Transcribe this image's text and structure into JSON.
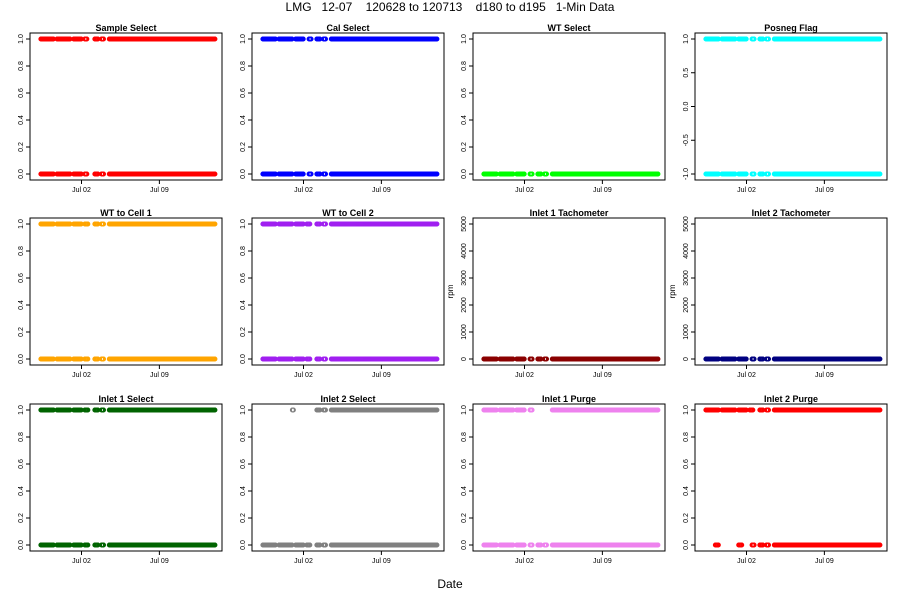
{
  "title": "LMG   12-07    120628 to 120713    d180 to d195   1-Min Data",
  "xlabel": "Date",
  "chart_data": [
    {
      "type": "scatter",
      "title": "Sample Select",
      "color": "#ff0000",
      "ylim": [
        0,
        1
      ],
      "yticks": [
        "0.0",
        "0.2",
        "0.4",
        "0.6",
        "0.8",
        "1.0"
      ],
      "ylabel": "",
      "xticks": [
        "Jul 02",
        "Jul 09"
      ],
      "x_range_days": [
        0,
        16
      ],
      "series": [
        {
          "name": "high",
          "y": 1,
          "segments": [
            [
              0.35,
              1.5
            ],
            [
              1.8,
              3.0
            ],
            [
              3.3,
              4.0
            ],
            [
              4.3,
              4.5
            ],
            [
              5.2,
              5.5
            ],
            [
              5.8,
              6.0
            ],
            [
              6.5,
              16
            ]
          ]
        },
        {
          "name": "low",
          "y": 0,
          "segments": [
            [
              0.35,
              1.5
            ],
            [
              1.8,
              3.0
            ],
            [
              3.3,
              4.0
            ],
            [
              4.3,
              4.5
            ],
            [
              5.2,
              5.5
            ],
            [
              5.8,
              6.0
            ],
            [
              6.5,
              16
            ]
          ]
        }
      ]
    },
    {
      "type": "scatter",
      "title": "Cal Select",
      "color": "#0000ff",
      "ylim": [
        0,
        1
      ],
      "yticks": [
        "0.0",
        "0.2",
        "0.4",
        "0.6",
        "0.8",
        "1.0"
      ],
      "ylabel": "",
      "xticks": [
        "Jul 02",
        "Jul 09"
      ],
      "x_range_days": [
        0,
        16
      ],
      "series": [
        {
          "name": "high",
          "y": 1,
          "segments": [
            [
              0.35,
              1.5
            ],
            [
              1.8,
              3.0
            ],
            [
              3.3,
              4.0
            ],
            [
              4.5,
              4.7
            ],
            [
              5.2,
              5.5
            ],
            [
              5.8,
              6.0
            ],
            [
              6.5,
              16
            ]
          ]
        },
        {
          "name": "low",
          "y": 0,
          "segments": [
            [
              0.35,
              1.5
            ],
            [
              1.8,
              3.0
            ],
            [
              3.3,
              4.0
            ],
            [
              4.5,
              4.7
            ],
            [
              5.2,
              5.5
            ],
            [
              5.8,
              6.0
            ],
            [
              6.5,
              16
            ]
          ]
        }
      ]
    },
    {
      "type": "scatter",
      "title": "WT Select",
      "color": "#00ff00",
      "ylim": [
        0,
        1
      ],
      "yticks": [
        "0.0",
        "0.2",
        "0.4",
        "0.6",
        "0.8",
        "1.0"
      ],
      "ylabel": "",
      "xticks": [
        "Jul 02",
        "Jul 09"
      ],
      "x_range_days": [
        0,
        16
      ],
      "series": [
        {
          "name": "low",
          "y": 0,
          "segments": [
            [
              0.35,
              1.5
            ],
            [
              1.8,
              3.0
            ],
            [
              3.3,
              4.0
            ],
            [
              4.5,
              4.7
            ],
            [
              5.2,
              5.5
            ],
            [
              5.8,
              6.0
            ],
            [
              6.5,
              16
            ]
          ]
        }
      ]
    },
    {
      "type": "scatter",
      "title": "Posneg Flag",
      "color": "#00ffff",
      "ylim": [
        -1,
        1
      ],
      "yticks": [
        "-1.0",
        "-0.5",
        "0.0",
        "0.5",
        "1.0"
      ],
      "ylabel": "",
      "xticks": [
        "Jul 02",
        "Jul 09"
      ],
      "x_range_days": [
        0,
        16
      ],
      "series": [
        {
          "name": "high",
          "y": 1,
          "segments": [
            [
              0.35,
              1.5
            ],
            [
              1.8,
              3.0
            ],
            [
              3.3,
              4.0
            ],
            [
              4.5,
              4.7
            ],
            [
              5.2,
              5.5
            ],
            [
              5.8,
              6.0
            ],
            [
              6.5,
              16
            ]
          ]
        },
        {
          "name": "low",
          "y": -1,
          "segments": [
            [
              0.35,
              1.5
            ],
            [
              1.8,
              3.0
            ],
            [
              3.3,
              4.0
            ],
            [
              4.5,
              4.7
            ],
            [
              5.2,
              5.5
            ],
            [
              5.8,
              6.0
            ],
            [
              6.5,
              16
            ]
          ]
        }
      ]
    },
    {
      "type": "scatter",
      "title": "WT to Cell 1",
      "color": "#ffa500",
      "ylim": [
        0,
        1
      ],
      "yticks": [
        "0.0",
        "0.2",
        "0.4",
        "0.6",
        "0.8",
        "1.0"
      ],
      "ylabel": "",
      "xticks": [
        "Jul 02",
        "Jul 09"
      ],
      "x_range_days": [
        0,
        16
      ],
      "series": [
        {
          "name": "high",
          "y": 1,
          "segments": [
            [
              0.35,
              1.5
            ],
            [
              1.8,
              3.0
            ],
            [
              3.3,
              4.0
            ],
            [
              4.3,
              4.6
            ],
            [
              5.2,
              5.5
            ],
            [
              5.8,
              6.0
            ],
            [
              6.5,
              16
            ]
          ]
        },
        {
          "name": "low",
          "y": 0,
          "segments": [
            [
              0.35,
              1.5
            ],
            [
              1.8,
              3.0
            ],
            [
              3.3,
              4.0
            ],
            [
              4.3,
              4.6
            ],
            [
              5.2,
              5.5
            ],
            [
              5.8,
              6.0
            ],
            [
              6.5,
              16
            ]
          ]
        }
      ]
    },
    {
      "type": "scatter",
      "title": "WT to Cell 2",
      "color": "#a020f0",
      "ylim": [
        0,
        1
      ],
      "yticks": [
        "0.0",
        "0.2",
        "0.4",
        "0.6",
        "0.8",
        "1.0"
      ],
      "ylabel": "",
      "xticks": [
        "Jul 02",
        "Jul 09"
      ],
      "x_range_days": [
        0,
        16
      ],
      "series": [
        {
          "name": "high",
          "y": 1,
          "segments": [
            [
              0.35,
              1.5
            ],
            [
              1.8,
              3.0
            ],
            [
              3.3,
              4.0
            ],
            [
              4.3,
              4.6
            ],
            [
              5.2,
              5.5
            ],
            [
              5.8,
              6.0
            ],
            [
              6.5,
              16
            ]
          ]
        },
        {
          "name": "low",
          "y": 0,
          "segments": [
            [
              0.35,
              1.5
            ],
            [
              1.8,
              3.0
            ],
            [
              3.3,
              4.0
            ],
            [
              4.3,
              4.6
            ],
            [
              5.2,
              5.5
            ],
            [
              5.8,
              6.0
            ],
            [
              6.5,
              16
            ]
          ]
        }
      ]
    },
    {
      "type": "scatter",
      "title": "Inlet 1 Tachometer",
      "color": "#8b0000",
      "ylim": [
        0,
        5000
      ],
      "yticks": [
        "0",
        "1000",
        "2000",
        "3000",
        "4000",
        "5000"
      ],
      "ylabel": "rpm",
      "xticks": [
        "Jul 02",
        "Jul 09"
      ],
      "x_range_days": [
        0,
        16
      ],
      "series": [
        {
          "name": "low",
          "y": 0,
          "segments": [
            [
              0.35,
              1.5
            ],
            [
              1.8,
              3.0
            ],
            [
              3.3,
              4.0
            ],
            [
              4.5,
              4.7
            ],
            [
              5.2,
              5.5
            ],
            [
              5.8,
              6.0
            ],
            [
              6.5,
              16
            ]
          ]
        }
      ]
    },
    {
      "type": "scatter",
      "title": "Inlet 2 Tachometer",
      "color": "#000080",
      "ylim": [
        0,
        5000
      ],
      "yticks": [
        "0",
        "1000",
        "2000",
        "3000",
        "4000",
        "5000"
      ],
      "ylabel": "rpm",
      "xticks": [
        "Jul 02",
        "Jul 09"
      ],
      "x_range_days": [
        0,
        16
      ],
      "series": [
        {
          "name": "low",
          "y": 0,
          "segments": [
            [
              0.35,
              1.5
            ],
            [
              1.8,
              3.0
            ],
            [
              3.3,
              4.0
            ],
            [
              4.5,
              4.7
            ],
            [
              5.2,
              5.5
            ],
            [
              5.8,
              6.0
            ],
            [
              6.5,
              16
            ]
          ]
        }
      ]
    },
    {
      "type": "scatter",
      "title": "Inlet 1 Select",
      "color": "#006400",
      "ylim": [
        0,
        1
      ],
      "yticks": [
        "0.0",
        "0.2",
        "0.4",
        "0.6",
        "0.8",
        "1.0"
      ],
      "ylabel": "",
      "xticks": [
        "Jul 02",
        "Jul 09"
      ],
      "x_range_days": [
        0,
        16
      ],
      "series": [
        {
          "name": "high",
          "y": 1,
          "segments": [
            [
              0.35,
              1.5
            ],
            [
              1.8,
              3.0
            ],
            [
              3.3,
              4.0
            ],
            [
              4.3,
              4.6
            ],
            [
              5.2,
              5.5
            ],
            [
              5.8,
              6.0
            ],
            [
              6.5,
              16
            ]
          ]
        },
        {
          "name": "low",
          "y": 0,
          "segments": [
            [
              0.35,
              1.5
            ],
            [
              1.8,
              3.0
            ],
            [
              3.3,
              4.0
            ],
            [
              4.3,
              4.6
            ],
            [
              5.2,
              5.5
            ],
            [
              5.8,
              6.0
            ],
            [
              6.5,
              16
            ]
          ]
        }
      ]
    },
    {
      "type": "scatter",
      "title": "Inlet 2 Select",
      "color": "#808080",
      "ylim": [
        0,
        1
      ],
      "yticks": [
        "0.0",
        "0.2",
        "0.4",
        "0.6",
        "0.8",
        "1.0"
      ],
      "ylabel": "",
      "xticks": [
        "Jul 02",
        "Jul 09"
      ],
      "x_range_days": [
        0,
        16
      ],
      "series": [
        {
          "name": "high",
          "y": 1,
          "segments": [
            [
              3.0,
              3.1
            ],
            [
              5.2,
              5.5
            ],
            [
              5.8,
              6.0
            ],
            [
              6.5,
              16
            ]
          ]
        },
        {
          "name": "low",
          "y": 0,
          "segments": [
            [
              0.35,
              1.5
            ],
            [
              1.8,
              3.0
            ],
            [
              3.3,
              4.0
            ],
            [
              4.3,
              4.6
            ],
            [
              5.2,
              5.5
            ],
            [
              5.8,
              6.0
            ],
            [
              6.5,
              16
            ]
          ]
        }
      ]
    },
    {
      "type": "scatter",
      "title": "Inlet 1 Purge",
      "color": "#ee82ee",
      "ylim": [
        0,
        1
      ],
      "yticks": [
        "0.0",
        "0.2",
        "0.4",
        "0.6",
        "0.8",
        "1.0"
      ],
      "ylabel": "",
      "xticks": [
        "Jul 02",
        "Jul 09"
      ],
      "x_range_days": [
        0,
        16
      ],
      "series": [
        {
          "name": "high",
          "y": 1,
          "segments": [
            [
              0.35,
              1.5
            ],
            [
              1.8,
              3.0
            ],
            [
              3.3,
              4.0
            ],
            [
              4.5,
              4.7
            ],
            [
              6.5,
              16
            ]
          ]
        },
        {
          "name": "low",
          "y": 0,
          "segments": [
            [
              0.35,
              1.5
            ],
            [
              1.8,
              3.0
            ],
            [
              3.3,
              4.0
            ],
            [
              4.5,
              4.7
            ],
            [
              5.2,
              5.5
            ],
            [
              5.8,
              6.0
            ],
            [
              6.5,
              16
            ]
          ]
        }
      ]
    },
    {
      "type": "scatter",
      "title": "Inlet 2 Purge",
      "color": "#ff0000",
      "ylim": [
        0,
        1
      ],
      "yticks": [
        "0.0",
        "0.2",
        "0.4",
        "0.6",
        "0.8",
        "1.0"
      ],
      "ylabel": "",
      "xticks": [
        "Jul 02",
        "Jul 09"
      ],
      "x_range_days": [
        0,
        16
      ],
      "series": [
        {
          "name": "high",
          "y": 1,
          "segments": [
            [
              0.35,
              1.5
            ],
            [
              1.8,
              3.0
            ],
            [
              3.3,
              4.0
            ],
            [
              4.3,
              4.6
            ],
            [
              5.2,
              5.5
            ],
            [
              5.8,
              6.0
            ],
            [
              6.5,
              16
            ]
          ]
        },
        {
          "name": "low",
          "y": 0,
          "segments": [
            [
              1.2,
              1.5
            ],
            [
              3.3,
              3.6
            ],
            [
              4.5,
              4.7
            ],
            [
              5.2,
              5.5
            ],
            [
              5.8,
              6.0
            ],
            [
              6.5,
              16
            ]
          ]
        }
      ]
    }
  ]
}
